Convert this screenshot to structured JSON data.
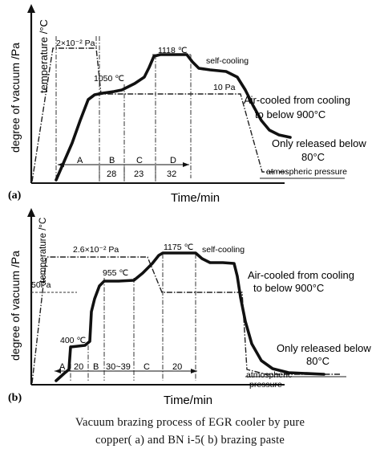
{
  "figure_caption": {
    "line1": "Vacuum brazing process of EGR cooler by pure",
    "line2": "copper( a) and BN i-5( b) brazing paste"
  },
  "chart_data": [
    {
      "type": "line",
      "panel_label": "(a)",
      "xlabel": "Time/min",
      "ylabel_left": "degree of vacuum /Pa",
      "ylabel_right": "temperature /°C",
      "series": [
        {
          "name": "temperature",
          "points": [
            [
              0,
              0
            ],
            [
              4.5,
              46
            ],
            [
              6,
              80
            ],
            [
              8,
              82
            ],
            [
              10,
              84
            ],
            [
              12,
              88
            ],
            [
              14,
              108
            ],
            [
              16,
              115
            ],
            [
              19,
              118
            ],
            [
              22,
              130
            ],
            [
              25,
              162
            ],
            [
              28,
              192
            ],
            [
              31,
              194
            ],
            [
              38,
              194
            ],
            [
              40,
              186
            ],
            [
              42,
              178
            ],
            [
              47,
              176
            ],
            [
              50,
              173
            ],
            [
              55,
              163
            ],
            [
              60,
              140
            ],
            [
              65,
              118
            ],
            [
              70,
              98
            ],
            [
              76,
              82
            ],
            [
              82,
              72
            ],
            [
              86,
              68
            ]
          ]
        },
        {
          "name": "vacuum",
          "points": [
            [
              0,
              0
            ],
            [
              6,
              165
            ],
            [
              18,
              165
            ],
            [
              20,
              118
            ],
            [
              52,
              118
            ],
            [
              58,
              35
            ],
            [
              78,
              35
            ]
          ]
        }
      ],
      "annotations": [
        "2×10⁻² Pa",
        "1050 ℃",
        "1118 ℃",
        "10 Pa",
        "self-cooling",
        "Air-cooled from cooling",
        "to below 900°C",
        "Only released below",
        "80°C",
        "atmospheric pressure"
      ],
      "segments": [
        "A",
        "B",
        "C",
        "D"
      ],
      "segment_values": [
        "28",
        "23",
        "32"
      ]
    },
    {
      "type": "line",
      "panel_label": "(b)",
      "xlabel": "Time/min",
      "ylabel_left": "degree of vacuum /Pa",
      "ylabel_right": "temperature /°C",
      "series": [
        {
          "name": "temperature",
          "points": [
            [
              0,
              0
            ],
            [
              4,
              6
            ],
            [
              7,
              6
            ],
            [
              9,
              20
            ],
            [
              13,
              22
            ],
            [
              14,
              55
            ],
            [
              16,
              106
            ],
            [
              18,
              116
            ],
            [
              19,
              132
            ],
            [
              30,
              132
            ],
            [
              34,
              140
            ],
            [
              40,
              156
            ],
            [
              42,
              164
            ],
            [
              58,
              164
            ],
            [
              60,
              150
            ],
            [
              66,
              150
            ],
            [
              69,
              130
            ],
            [
              72,
              90
            ],
            [
              76,
              60
            ],
            [
              81,
              46
            ],
            [
              86,
              44
            ]
          ]
        },
        {
          "name": "vacuum",
          "points": [
            [
              0,
              0
            ],
            [
              6,
              142
            ],
            [
              45,
              142
            ],
            [
              52,
              115
            ],
            [
              76,
              115
            ]
          ]
        }
      ],
      "annotations": [
        "2.6×10⁻² Pa",
        "50Pa",
        "400 ℃",
        "955 ℃",
        "1175 ℃",
        "self-cooling",
        "Air-cooled from cooling",
        "to below 900°C",
        "Only released below",
        "80°C",
        "atmospheric",
        "pressure"
      ],
      "segments": [
        "A",
        "B",
        "C"
      ],
      "segment_values": [
        "20",
        "30~39",
        "20"
      ]
    }
  ]
}
